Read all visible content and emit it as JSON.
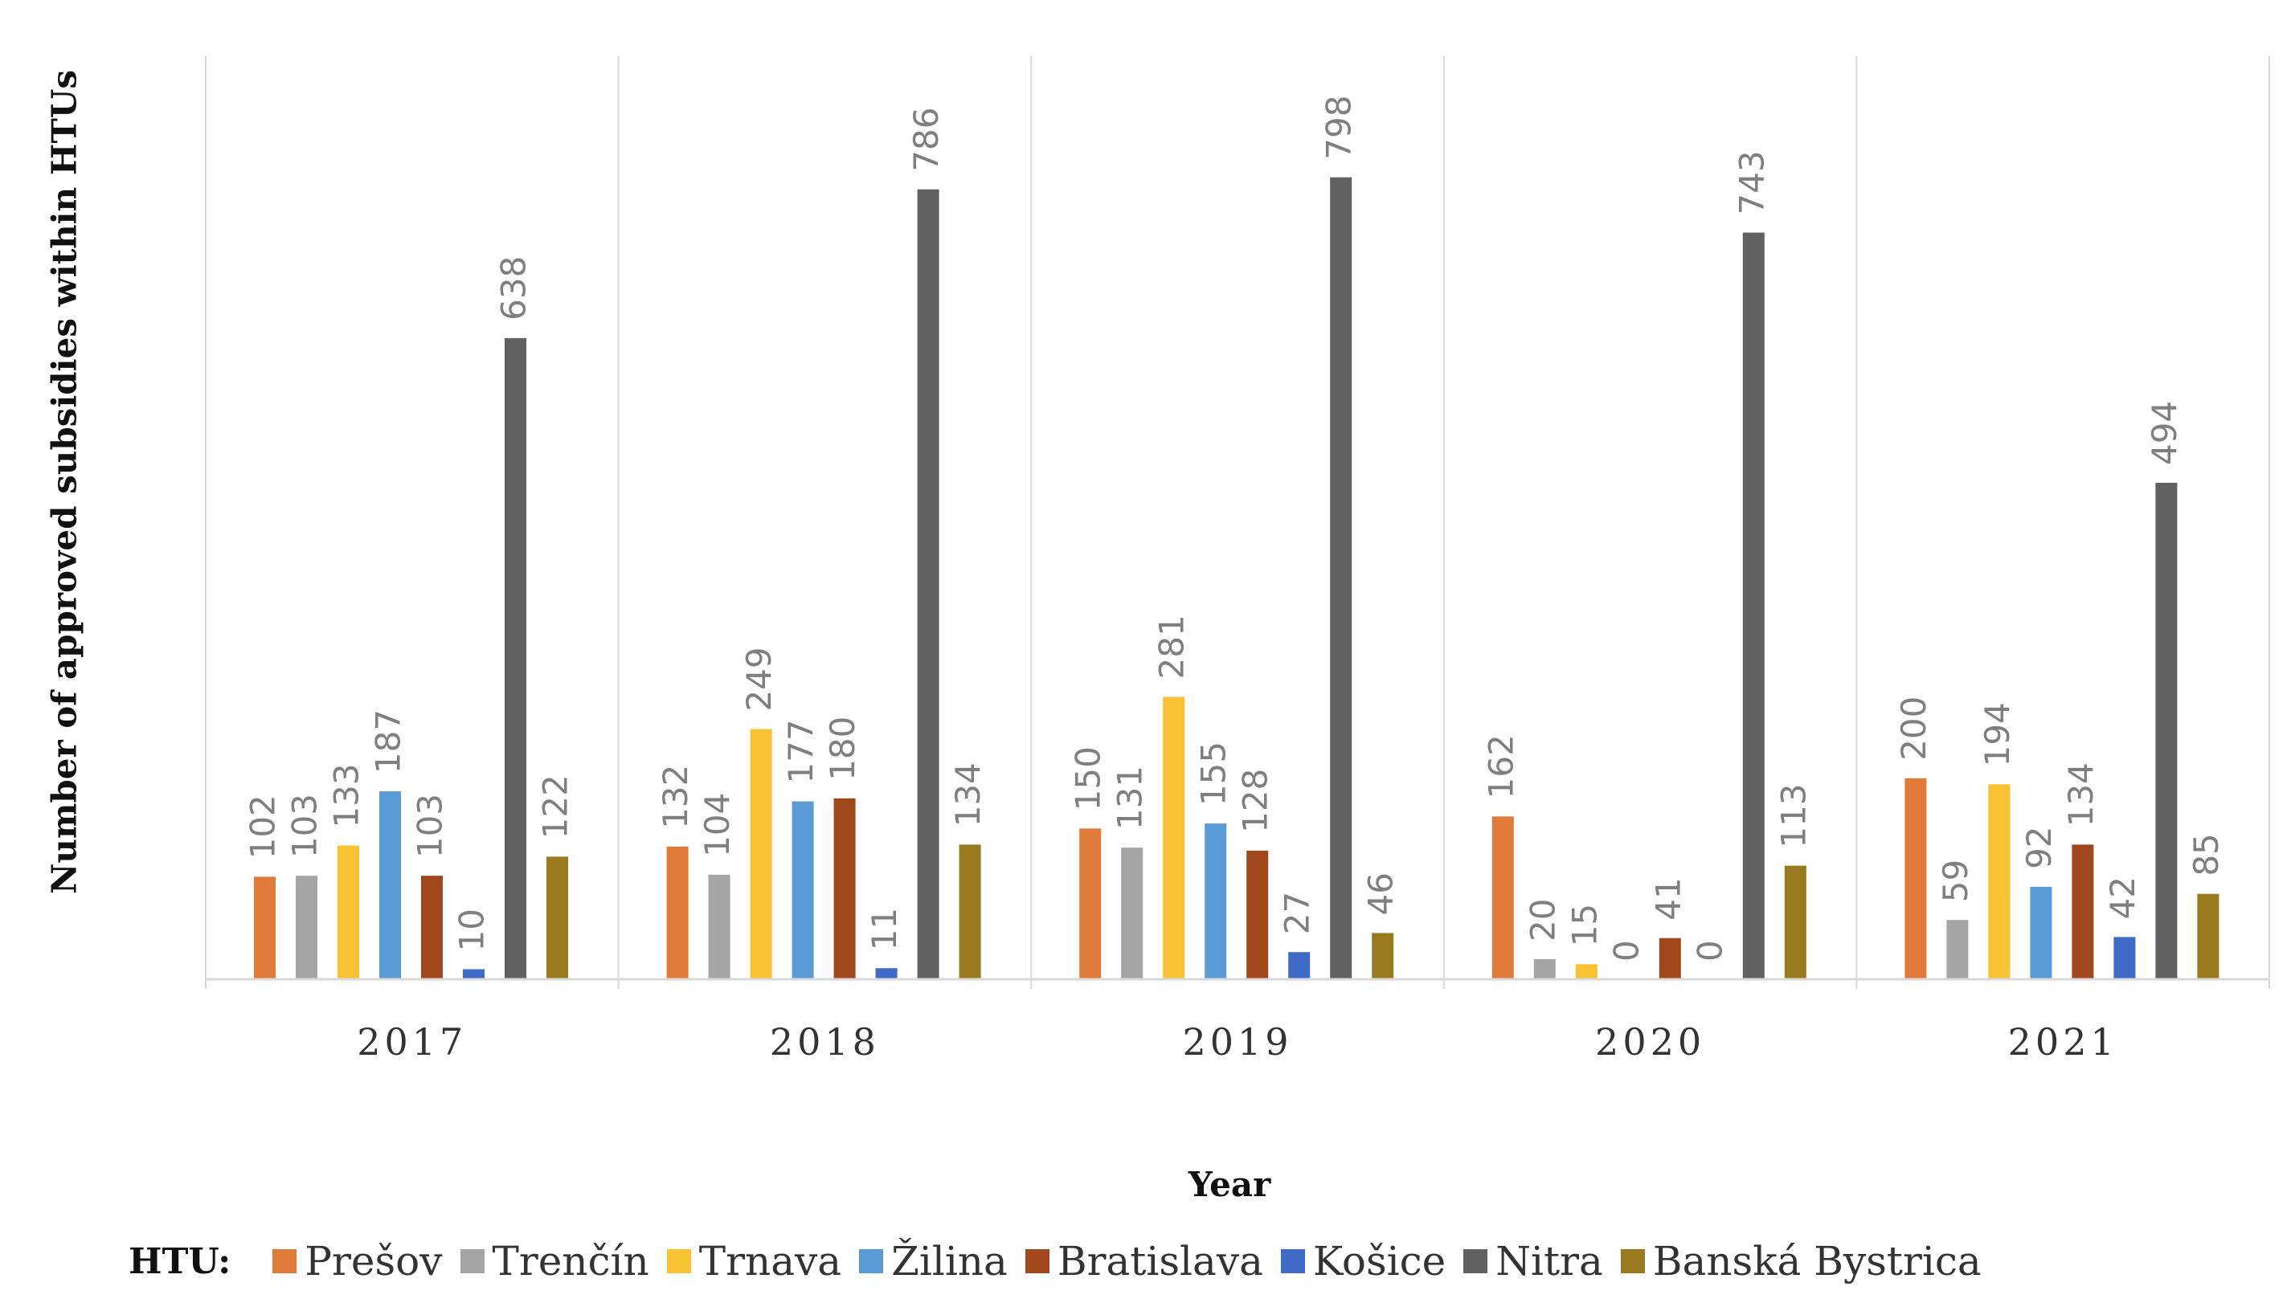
{
  "chart_data": {
    "type": "bar",
    "title": "",
    "xlabel": "Year",
    "ylabel": "Number of approved subsidies within HTUs",
    "ylim": [
      0,
      900
    ],
    "grid": false,
    "legend_title": "HTU:",
    "legend_position": "bottom",
    "categories": [
      "2017",
      "2018",
      "2019",
      "2020",
      "2021"
    ],
    "series": [
      {
        "name": "Prešov",
        "color": "#E07B3A",
        "values": [
          102,
          132,
          150,
          162,
          200
        ]
      },
      {
        "name": "Trenčín",
        "color": "#A5A5A5",
        "values": [
          103,
          104,
          131,
          20,
          59
        ]
      },
      {
        "name": "Trnava",
        "color": "#F8C232",
        "values": [
          133,
          249,
          281,
          15,
          194
        ]
      },
      {
        "name": "Žilina",
        "color": "#5B9BD5",
        "values": [
          187,
          177,
          155,
          0,
          92
        ]
      },
      {
        "name": "Bratislava",
        "color": "#A0481C",
        "values": [
          103,
          180,
          128,
          41,
          134
        ]
      },
      {
        "name": "Košice",
        "color": "#3F6AC8",
        "values": [
          10,
          11,
          27,
          0,
          42
        ]
      },
      {
        "name": "Nitra",
        "color": "#616161",
        "values": [
          638,
          786,
          798,
          743,
          494
        ]
      },
      {
        "name": "Banská Bystrica",
        "color": "#9A7A1E",
        "values": [
          122,
          134,
          46,
          113,
          85
        ]
      }
    ]
  }
}
